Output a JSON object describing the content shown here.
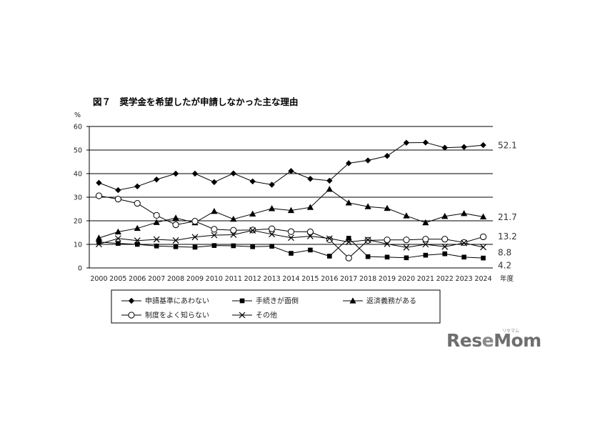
{
  "chart_data": {
    "type": "line",
    "title": "図７　奨学金を希望したが申請しなかった主な理由",
    "ylabel": "%",
    "xlabel": "年度",
    "ylim": [
      0,
      60
    ],
    "yticks": [
      "0",
      "10",
      "20",
      "30",
      "40",
      "50",
      "60"
    ],
    "categories": [
      "2000",
      "2005",
      "2006",
      "2007",
      "2008",
      "2009",
      "2010",
      "2011",
      "2012",
      "2013",
      "2014",
      "2015",
      "2016",
      "2017",
      "2018",
      "2019",
      "2020",
      "2021",
      "2022",
      "2023",
      "2024"
    ],
    "grid": "horizontal",
    "legend_position": "bottom",
    "series": [
      {
        "name": "申請基準にあわない",
        "marker": "diamond",
        "end_label": "52.1",
        "values": [
          36.1,
          33.0,
          34.6,
          37.5,
          40.0,
          40.0,
          36.4,
          40.1,
          36.7,
          35.3,
          41.1,
          37.8,
          37.0,
          44.4,
          45.6,
          47.5,
          53.1,
          53.2,
          51.0,
          51.3,
          52.1
        ]
      },
      {
        "name": "手続きが面倒",
        "marker": "square",
        "end_label": "4.2",
        "values": [
          11.0,
          10.4,
          10.0,
          9.3,
          9.0,
          8.8,
          9.5,
          9.4,
          9.0,
          9.2,
          6.2,
          7.6,
          5.0,
          12.6,
          4.8,
          4.6,
          4.3,
          5.4,
          6.0,
          4.6,
          4.2
        ]
      },
      {
        "name": "返済義務がある",
        "marker": "triangle",
        "end_label": "21.7",
        "values": [
          12.7,
          15.3,
          16.8,
          19.3,
          21.2,
          19.2,
          24.0,
          20.7,
          22.9,
          25.2,
          24.4,
          25.7,
          33.4,
          27.6,
          26.0,
          25.3,
          22.1,
          19.2,
          21.9,
          23.1,
          21.7
        ]
      },
      {
        "name": "制度をよく知らない",
        "marker": "circle",
        "end_label": "13.2",
        "values": [
          30.6,
          29.2,
          27.4,
          22.3,
          18.3,
          19.8,
          16.4,
          16.0,
          16.1,
          16.6,
          15.4,
          15.3,
          12.0,
          4.2,
          11.7,
          11.9,
          11.9,
          12.2,
          12.2,
          10.8,
          13.2
        ]
      },
      {
        "name": "その他",
        "marker": "x",
        "end_label": "8.8",
        "values": [
          10.1,
          12.5,
          11.6,
          12.1,
          11.7,
          13.1,
          13.9,
          14.1,
          15.9,
          14.3,
          12.8,
          13.5,
          12.5,
          11.0,
          11.9,
          10.2,
          8.7,
          10.0,
          9.0,
          10.6,
          8.8
        ]
      }
    ]
  },
  "colors": {
    "line": "#000000",
    "grid": "#000000",
    "brand": "#6e6e6e"
  },
  "brand": {
    "name_a": "Res",
    "name_e": "e",
    "name_b": "Mom",
    "kana": "リセマム"
  }
}
